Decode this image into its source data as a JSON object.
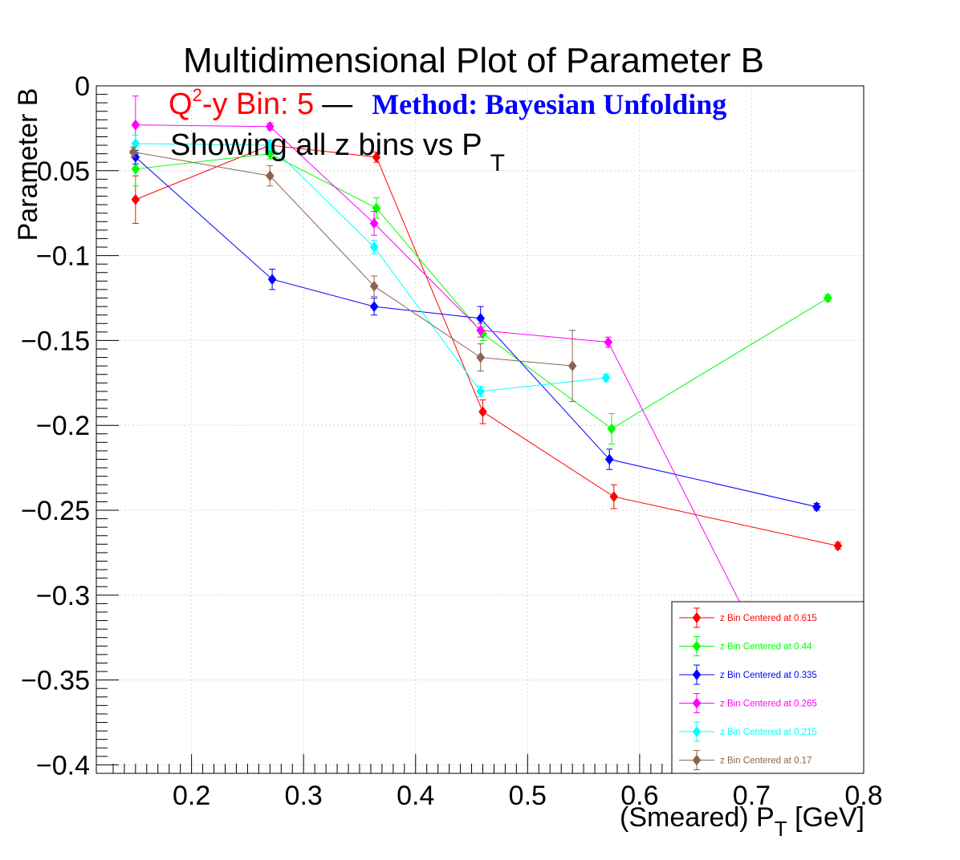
{
  "chart_data": {
    "type": "scatter",
    "title": "Multidimensional Plot of Parameter B",
    "subtitle_line1": {
      "bin_prefix": "Q",
      "bin_sup": "2",
      "bin_rest": "-y Bin: 5",
      "dash": "—",
      "method": "Method: Bayesian Unfolding"
    },
    "subtitle_line2": {
      "text": "Showing all z bins vs P",
      "sub": "T"
    },
    "xlabel": {
      "main": "(Smeared) P",
      "sub": "T",
      "unit": " [GeV]"
    },
    "ylabel": "Parameter B",
    "xlim": [
      0.115,
      0.8
    ],
    "ylim": [
      -0.405,
      0.0
    ],
    "x_ticks": [
      "0.2",
      "0.3",
      "0.4",
      "0.5",
      "0.6",
      "0.7",
      "0.8"
    ],
    "y_ticks": [
      "0",
      "−0.05",
      "−0.1",
      "−0.15",
      "−0.2",
      "−0.25",
      "−0.3",
      "−0.35",
      "−0.4"
    ],
    "grid": true,
    "legend_position": "bottom-right",
    "colors": {
      "title": "#000000",
      "bin_text": "#ff0000",
      "method_text": "#0000ff"
    },
    "series": [
      {
        "name": "z Bin Centered at 0.615",
        "color": "#ff0000",
        "x": [
          0.15,
          0.27,
          0.365,
          0.46,
          0.577,
          0.777
        ],
        "y": [
          -0.067,
          -0.035,
          -0.042,
          -0.192,
          -0.242,
          -0.271
        ],
        "err": [
          0.014,
          0.003,
          0.003,
          0.007,
          0.007,
          0.002
        ]
      },
      {
        "name": "z Bin Centered at 0.44",
        "color": "#00ff00",
        "x": [
          0.15,
          0.27,
          0.365,
          0.46,
          0.575,
          0.768
        ],
        "y": [
          -0.049,
          -0.04,
          -0.072,
          -0.146,
          -0.202,
          -0.125
        ],
        "err": [
          0.01,
          0.003,
          0.006,
          0.004,
          0.009,
          0.002
        ]
      },
      {
        "name": "z Bin Centered at 0.335",
        "color": "#0000ff",
        "x": [
          0.15,
          0.272,
          0.363,
          0.458,
          0.573,
          0.758
        ],
        "y": [
          -0.042,
          -0.114,
          -0.13,
          -0.137,
          -0.22,
          -0.248
        ],
        "err": [
          0.004,
          0.006,
          0.005,
          0.007,
          0.006,
          0.002
        ]
      },
      {
        "name": "z Bin Centered at 0.265",
        "color": "#ff00ff",
        "x": [
          0.15,
          0.27,
          0.363,
          0.458,
          0.572,
          0.7
        ],
        "y": [
          -0.023,
          -0.024,
          -0.081,
          -0.144,
          -0.151,
          -0.318
        ],
        "err": [
          0.017,
          0.002,
          0.007,
          0.004,
          0.003,
          0.0
        ]
      },
      {
        "name": "z Bin Centered at 0.215",
        "color": "#00ffff",
        "x": [
          0.15,
          0.27,
          0.363,
          0.458,
          0.57
        ],
        "y": [
          -0.034,
          -0.035,
          -0.095,
          -0.18,
          -0.172
        ],
        "err": [
          0.005,
          0.003,
          0.004,
          0.003,
          0.002
        ]
      },
      {
        "name": "z Bin Centered at 0.17",
        "color": "#8b6450",
        "x": [
          0.148,
          0.27,
          0.363,
          0.458,
          0.54
        ],
        "y": [
          -0.039,
          -0.053,
          -0.118,
          -0.16,
          -0.165
        ],
        "err": [
          0.003,
          0.006,
          0.006,
          0.008,
          0.021
        ]
      }
    ]
  }
}
